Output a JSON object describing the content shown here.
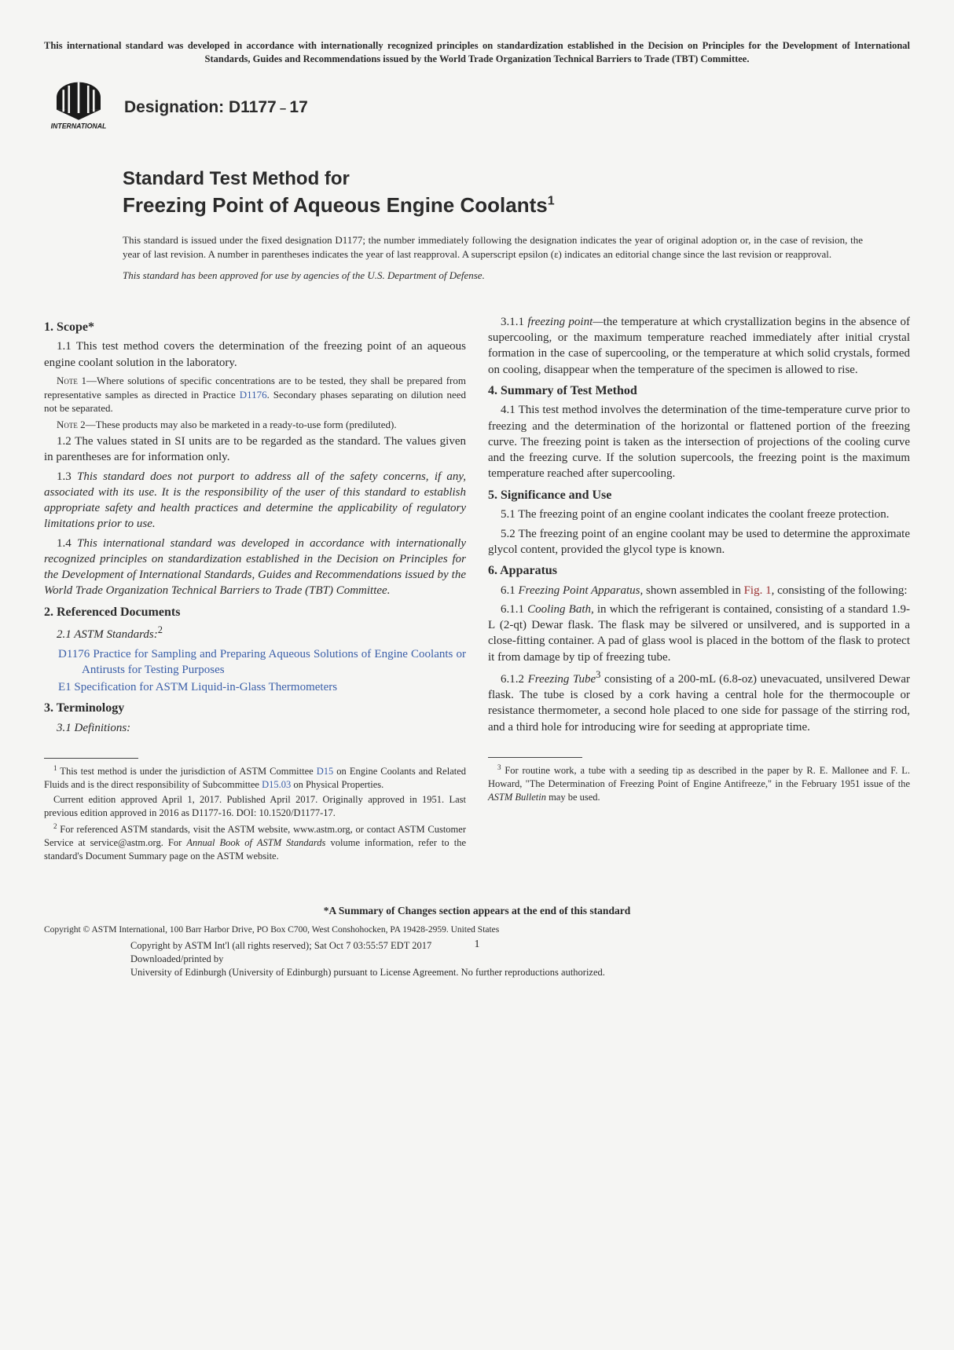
{
  "top_notice": "This international standard was developed in accordance with internationally recognized principles on standardization established in the Decision on Principles for the Development of International Standards, Guides and Recommendations issued by the World Trade Organization Technical Barriers to Trade (TBT) Committee.",
  "designation_label": "Designation: D1177",
  "designation_dash": " – ",
  "designation_year": "17",
  "title_line1": "Standard Test Method for",
  "title_line2": "Freezing Point of Aqueous Engine Coolants",
  "title_super": "1",
  "issue_note": "This standard is issued under the fixed designation D1177; the number immediately following the designation indicates the year of original adoption or, in the case of revision, the year of last revision. A number in parentheses indicates the year of last reapproval. A superscript epsilon (ε) indicates an editorial change since the last revision or reapproval.",
  "dod_note": "This standard has been approved for use by agencies of the U.S. Department of Defense.",
  "scope_head": "1.  Scope*",
  "scope_1_1": "1.1 This test method covers the determination of the freezing point of an aqueous engine coolant solution in the laboratory.",
  "note1_label": "Note 1—",
  "note1_body": "Where solutions of specific concentrations are to be tested, they shall be prepared from representative samples as directed in Practice ",
  "note1_link": "D1176",
  "note1_tail": ". Secondary phases separating on dilution need not be separated.",
  "note2_label": "Note 2—",
  "note2_body": "These products may also be marketed in a ready-to-use form (prediluted).",
  "scope_1_2": "1.2 The values stated in SI units are to be regarded as the standard. The values given in parentheses are for information only.",
  "scope_1_3": "1.3 This standard does not purport to address all of the safety concerns, if any, associated with its use. It is the responsibility of the user of this standard to establish appropriate safety and health practices and determine the applicability of regulatory limitations prior to use.",
  "scope_1_4": "1.4 This international standard was developed in accordance with internationally recognized principles on standardization established in the Decision on Principles for the Development of International Standards, Guides and Recommendations issued by the World Trade Organization Technical Barriers to Trade (TBT) Committee.",
  "ref_head": "2.  Referenced Documents",
  "ref_2_1": "2.1 ASTM Standards:",
  "ref_2_1_sup": "2",
  "ref_d1176": "D1176",
  "ref_d1176_text": " Practice for Sampling and Preparing Aqueous Solutions of Engine Coolants or Antirusts for Testing Purposes",
  "ref_e1": "E1",
  "ref_e1_text": " Specification for ASTM Liquid-in-Glass Thermometers",
  "term_head": "3.  Terminology",
  "term_3_1": "3.1 Definitions:",
  "fn1": " This test method is under the jurisdiction of ASTM Committee ",
  "fn1_link1": "D15",
  "fn1_mid": " on Engine Coolants and Related Fluids and is the direct responsibility of Subcommittee ",
  "fn1_link2": "D15.03",
  "fn1_tail": " on Physical Properties.",
  "fn1b": "Current edition approved April 1, 2017. Published April 2017. Originally approved in 1951. Last previous edition approved in 2016 as D1177-16. DOI: 10.1520/D1177-17.",
  "fn2": " For referenced ASTM standards, visit the ASTM website, www.astm.org, or contact ASTM Customer Service at service@astm.org. For Annual Book of ASTM Standards volume information, refer to the standard's Document Summary page on the ASTM website.",
  "term_3_1_1_lead": "3.1.1 ",
  "term_3_1_1_term": "freezing point—",
  "term_3_1_1_body": "the temperature at which crystallization begins in the absence of supercooling, or the maximum temperature reached immediately after initial crystal formation in the case of supercooling, or the temperature at which solid crystals, formed on cooling, disappear when the temperature of the specimen is allowed to rise.",
  "sum_head": "4.  Summary of Test Method",
  "sum_4_1": "4.1 This test method involves the determination of the time-temperature curve prior to freezing and the determination of the horizontal or flattened portion of the freezing curve. The freezing point is taken as the intersection of projections of the cooling curve and the freezing curve. If the solution supercools, the freezing point is the maximum temperature reached after supercooling.",
  "sig_head": "5.  Significance and Use",
  "sig_5_1": "5.1 The freezing point of an engine coolant indicates the coolant freeze protection.",
  "sig_5_2": "5.2 The freezing point of an engine coolant may be used to determine the approximate glycol content, provided the glycol type is known.",
  "app_head": "6.  Apparatus",
  "app_6_1_lead": "6.1 ",
  "app_6_1_term": "Freezing Point Apparatus,",
  "app_6_1_body": " shown assembled in ",
  "app_6_1_fig": "Fig. 1",
  "app_6_1_tail": ", consisting of the following:",
  "app_6_1_1_lead": "6.1.1 ",
  "app_6_1_1_term": "Cooling Bath,",
  "app_6_1_1_body": " in which the refrigerant is contained, consisting of a standard 1.9-L (2-qt) Dewar flask. The flask may be silvered or unsilvered, and is supported in a close-fitting container. A pad of glass wool is placed in the bottom of the flask to protect it from damage by tip of freezing tube.",
  "app_6_1_2_lead": "6.1.2 ",
  "app_6_1_2_term": "Freezing Tube",
  "app_6_1_2_sup": "3",
  "app_6_1_2_body": " consisting of a 200-mL (6.8-oz) unevacuated, unsilvered Dewar flask. The tube is closed by a cork having a central hole for the thermocouple or resistance thermometer, a second hole placed to one side for passage of the stirring rod, and a third hole for introducing wire for seeding at appropriate time.",
  "fn3": " For routine work, a tube with a seeding tip as described in the paper by R. E. Mallonee and F. L. Howard, \"The Determination of Freezing Point of Engine Antifreeze,\" in the February 1951 issue of the ASTM Bulletin may be used.",
  "summary_note": "*A Summary of Changes section appears at the end of this standard",
  "copyright": "Copyright © ASTM International, 100 Barr Harbor Drive, PO Box C700, West Conshohocken, PA 19428-2959. United States",
  "dl1": "Copyright by ASTM Int'l (all rights reserved); Sat Oct  7 03:55:57 EDT 2017",
  "dl2": "Downloaded/printed by",
  "dl3": "University of Edinburgh (University of Edinburgh) pursuant to License Agreement. No further reproductions authorized.",
  "page_num": "1"
}
